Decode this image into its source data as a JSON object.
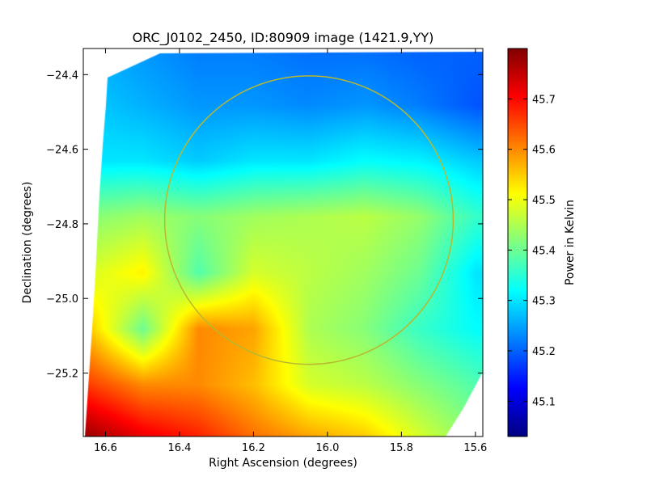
{
  "chart_data": {
    "type": "heatmap",
    "title": "ORC_J0102_2450, ID:80909 image (1421.9,YY)",
    "xlabel": "Right Ascension (degrees)",
    "ylabel": "Declination (degrees)",
    "colorbar_label": "Power in Kelvin",
    "colormap": "jet",
    "xlim": [
      16.66,
      15.58
    ],
    "ylim": [
      -25.37,
      -24.33
    ],
    "x_ticks": [
      {
        "value": 16.6,
        "label": "16.6"
      },
      {
        "value": 16.4,
        "label": "16.4"
      },
      {
        "value": 16.2,
        "label": "16.2"
      },
      {
        "value": 16.0,
        "label": "16.0"
      },
      {
        "value": 15.8,
        "label": "15.8"
      },
      {
        "value": 15.6,
        "label": "15.6"
      }
    ],
    "y_ticks": [
      {
        "value": -24.4,
        "label": "−24.4"
      },
      {
        "value": -24.6,
        "label": "−24.6"
      },
      {
        "value": -24.8,
        "label": "−24.8"
      },
      {
        "value": -25.0,
        "label": "−25.0"
      },
      {
        "value": -25.2,
        "label": "−25.2"
      }
    ],
    "color_range": [
      45.03,
      45.8
    ],
    "colorbar_ticks": [
      {
        "value": 45.1,
        "label": "45.1"
      },
      {
        "value": 45.2,
        "label": "45.2"
      },
      {
        "value": 45.3,
        "label": "45.3"
      },
      {
        "value": 45.4,
        "label": "45.4"
      },
      {
        "value": 45.5,
        "label": "45.5"
      },
      {
        "value": 45.6,
        "label": "45.6"
      },
      {
        "value": 45.7,
        "label": "45.7"
      }
    ],
    "circle": {
      "center_ra": 16.05,
      "center_dec": -24.79,
      "radius_deg": 0.39,
      "color": "#b8b830"
    },
    "grid": false,
    "grid_ra": [
      16.65,
      16.5,
      16.35,
      16.2,
      16.05,
      15.9,
      15.75,
      15.6
    ],
    "grid_dec": [
      -24.33,
      -24.48,
      -24.63,
      -24.78,
      -24.93,
      -25.08,
      -25.23,
      -25.37
    ],
    "grid_values": [
      [
        45.26,
        45.24,
        45.22,
        45.22,
        45.21,
        45.21,
        45.2,
        45.2
      ],
      [
        45.28,
        45.26,
        45.24,
        45.24,
        45.23,
        45.24,
        45.22,
        45.19
      ],
      [
        45.3,
        45.3,
        45.28,
        45.3,
        45.3,
        45.32,
        45.31,
        45.28
      ],
      [
        45.42,
        45.44,
        45.42,
        45.44,
        45.45,
        45.46,
        45.43,
        45.36
      ],
      [
        45.48,
        45.52,
        45.38,
        45.48,
        45.46,
        45.44,
        45.4,
        45.3
      ],
      [
        45.56,
        45.4,
        45.6,
        45.58,
        45.45,
        45.42,
        45.36,
        45.32
      ],
      [
        45.66,
        45.6,
        45.6,
        45.56,
        45.48,
        45.46,
        45.42,
        45.38
      ],
      [
        45.78,
        45.72,
        45.68,
        45.62,
        45.58,
        45.55,
        45.48,
        45.42
      ]
    ]
  }
}
